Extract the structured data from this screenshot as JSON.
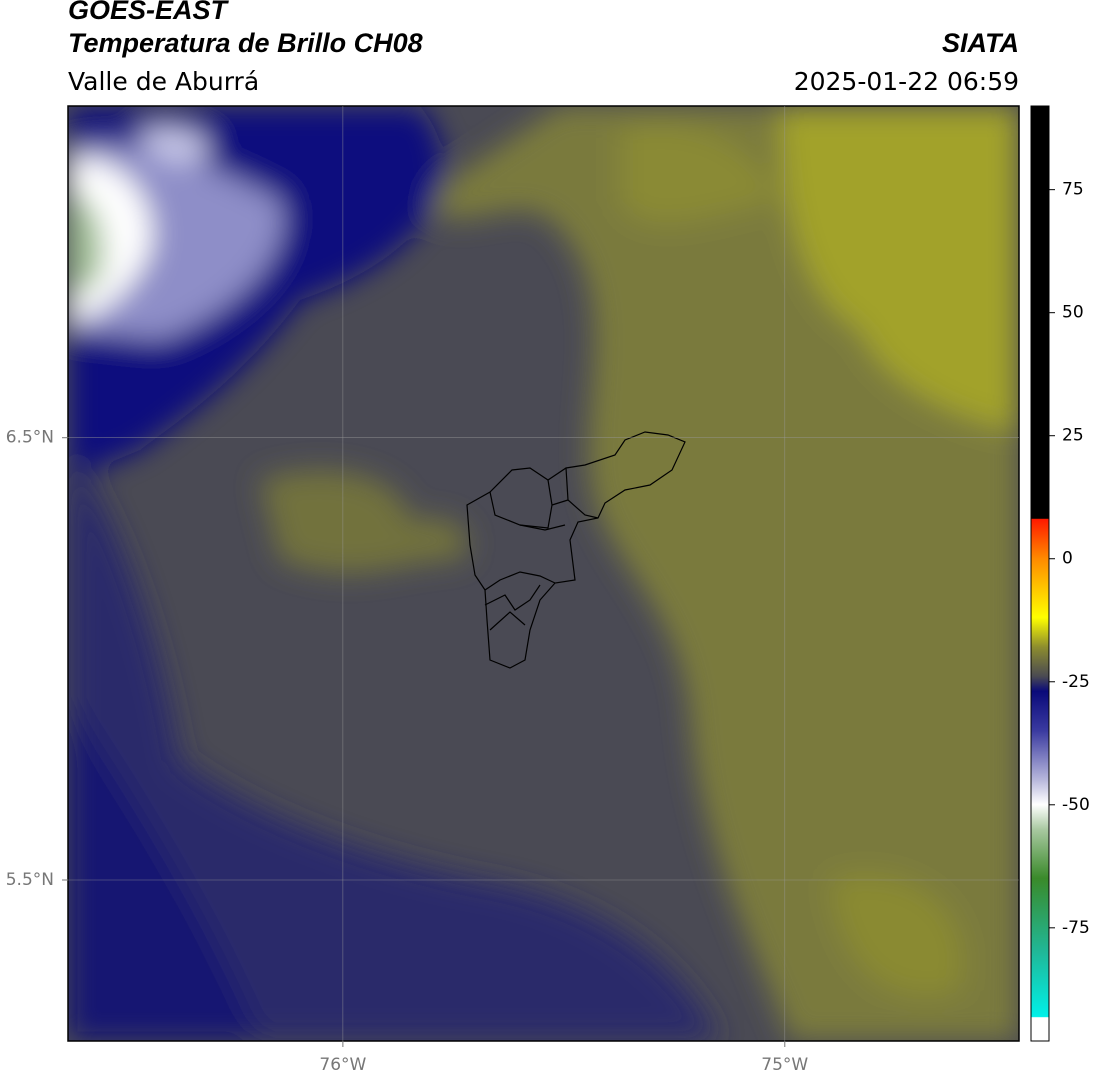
{
  "header": {
    "title": "GOES-EAST",
    "subtitle": "Temperatura de Brillo CH08",
    "region": "Valle de Aburrá",
    "source": "SIATA",
    "datetime": "2025-01-22 06:59"
  },
  "map": {
    "xlim": [
      -76.622,
      -74.47
    ],
    "ylim": [
      5.136,
      7.25
    ],
    "xticks": [
      {
        "value": -76,
        "label": "76°W"
      },
      {
        "value": -75,
        "label": "75°W"
      }
    ],
    "yticks": [
      {
        "value": 6.5,
        "label": "6.5°N"
      },
      {
        "value": 5.5,
        "label": "5.5°N"
      }
    ]
  },
  "colorbar": {
    "lim": [
      -98,
      92
    ],
    "ticks": [
      75,
      50,
      25,
      0,
      -25,
      -50,
      -75
    ]
  }
}
